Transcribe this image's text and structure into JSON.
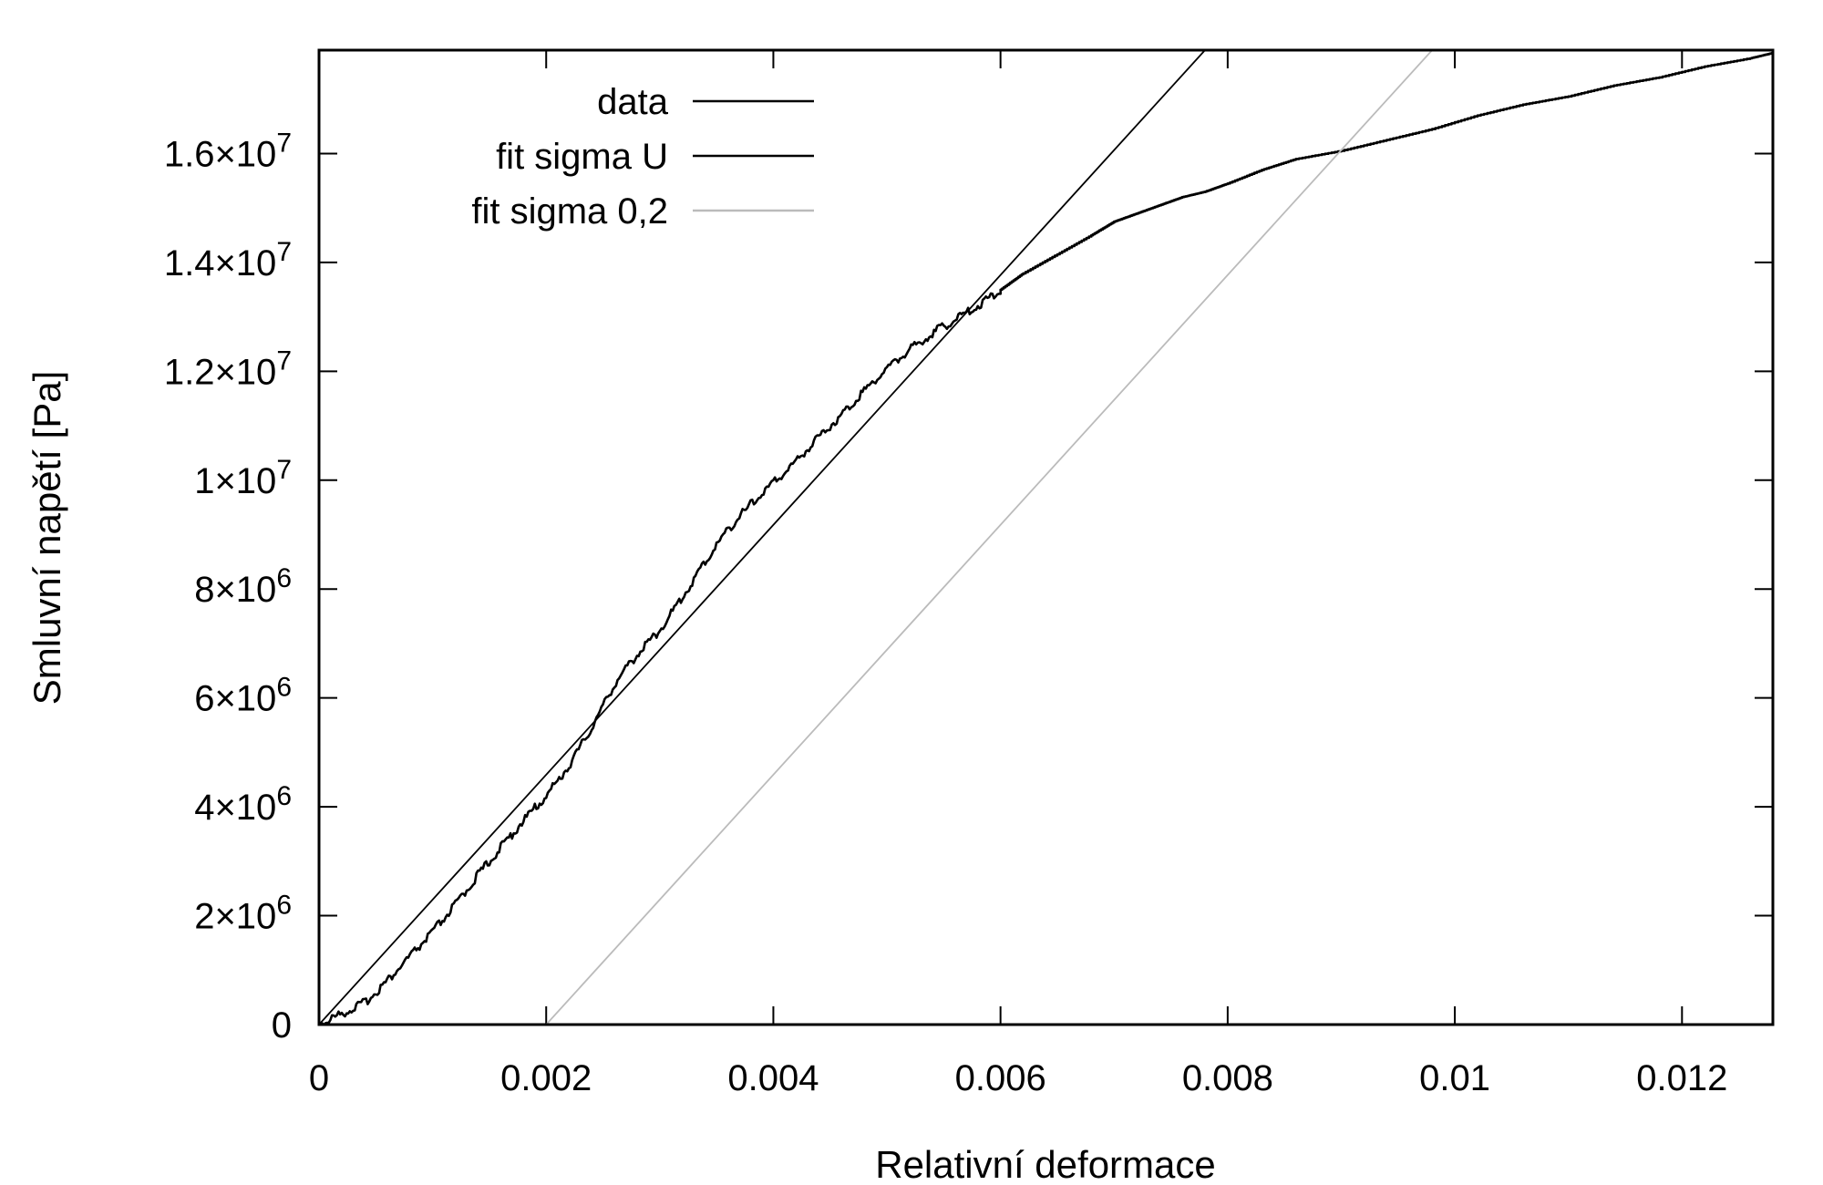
{
  "chart_data": {
    "type": "line",
    "title": "",
    "xlabel": "Relativní deformace",
    "ylabel": "Smluvní napětí [Pa]",
    "xlim": [
      0,
      0.0128
    ],
    "ylim": [
      0,
      17900000
    ],
    "x_ticks": [
      {
        "value": 0,
        "label": "0"
      },
      {
        "value": 0.002,
        "label": "0.002"
      },
      {
        "value": 0.004,
        "label": "0.004"
      },
      {
        "value": 0.006,
        "label": "0.006"
      },
      {
        "value": 0.008,
        "label": "0.008"
      },
      {
        "value": 0.01,
        "label": "0.01"
      },
      {
        "value": 0.012,
        "label": "0.012"
      }
    ],
    "y_ticks": [
      {
        "value": 0,
        "mantissa": "0",
        "exponent": ""
      },
      {
        "value": 2000000,
        "mantissa": "2×10",
        "exponent": "6"
      },
      {
        "value": 4000000,
        "mantissa": "4×10",
        "exponent": "6"
      },
      {
        "value": 6000000,
        "mantissa": "6×10",
        "exponent": "6"
      },
      {
        "value": 8000000,
        "mantissa": "8×10",
        "exponent": "6"
      },
      {
        "value": 10000000,
        "mantissa": "1×10",
        "exponent": "7"
      },
      {
        "value": 12000000,
        "mantissa": "1.2×10",
        "exponent": "7"
      },
      {
        "value": 14000000,
        "mantissa": "1.4×10",
        "exponent": "7"
      },
      {
        "value": 16000000,
        "mantissa": "1.6×10",
        "exponent": "7"
      }
    ],
    "grid": false,
    "legend_position": "top-left",
    "series": [
      {
        "name": "data",
        "color": "#000000",
        "style": "noisy-stepped",
        "x": [
          0,
          0.0002,
          0.0004,
          0.0006,
          0.0008,
          0.001,
          0.0012,
          0.0014,
          0.0016,
          0.0018,
          0.002,
          0.0022,
          0.0024,
          0.0026,
          0.0028,
          0.003,
          0.0032,
          0.0034,
          0.0036,
          0.0038,
          0.004,
          0.0042,
          0.0044,
          0.0046,
          0.0048,
          0.005,
          0.0052,
          0.0054,
          0.0056,
          0.0058,
          0.006,
          0.0062,
          0.0065,
          0.0068,
          0.007,
          0.0072,
          0.0074,
          0.0076,
          0.0078,
          0.008,
          0.0083,
          0.0086,
          0.009,
          0.0094,
          0.0098,
          0.0102,
          0.0106,
          0.011,
          0.0114,
          0.0118,
          0.0122,
          0.0126,
          0.0128
        ],
        "y": [
          0,
          200000,
          400000,
          800000,
          1250000,
          1700000,
          2200000,
          2750000,
          3250000,
          3750000,
          4200000,
          4750000,
          5450000,
          6250000,
          6800000,
          7250000,
          7850000,
          8500000,
          9100000,
          9550000,
          9950000,
          10350000,
          10800000,
          11200000,
          11650000,
          12050000,
          12400000,
          12700000,
          12950000,
          13200000,
          13500000,
          13800000,
          14150000,
          14500000,
          14750000,
          14900000,
          15050000,
          15200000,
          15300000,
          15450000,
          15700000,
          15900000,
          16050000,
          16250000,
          16450000,
          16700000,
          16900000,
          17050000,
          17250000,
          17400000,
          17600000,
          17750000,
          17850000
        ]
      },
      {
        "name": "fit sigma U",
        "color": "#000000",
        "x": [
          0,
          0.0078
        ],
        "y": [
          0,
          17900000
        ]
      },
      {
        "name": "fit sigma 0,2",
        "color": "#bbbbbb",
        "x": [
          0.002,
          0.0098
        ],
        "y": [
          0,
          17900000
        ]
      }
    ]
  }
}
